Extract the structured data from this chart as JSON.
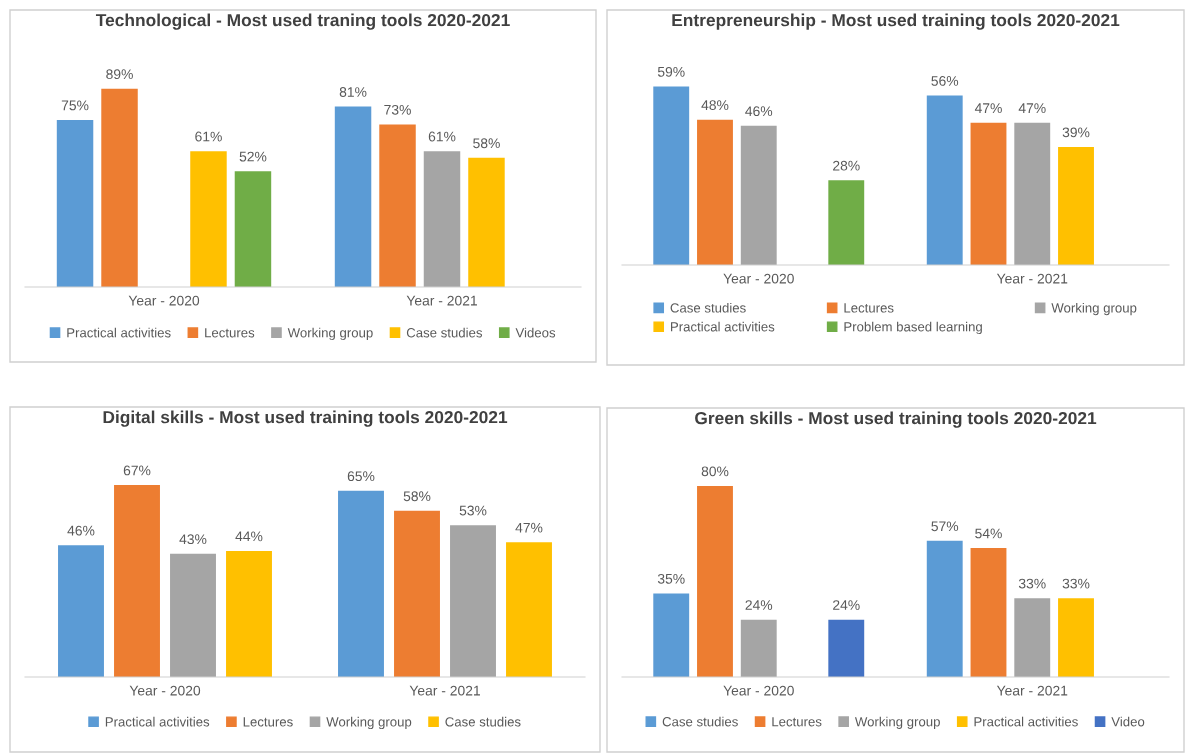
{
  "chart_data": [
    {
      "type": "bar",
      "title": "Technological - Most used traning tools 2020-2021",
      "categories": [
        "Year - 2020",
        "Year - 2021"
      ],
      "legend": "bottom",
      "series": [
        {
          "name": "Practical activities",
          "color": "#5b9bd5",
          "values": [
            75,
            81
          ],
          "value_labels": [
            "75%",
            "81%"
          ]
        },
        {
          "name": "Lectures",
          "color": "#ed7d31",
          "values": [
            89,
            73
          ],
          "value_labels": [
            "89%",
            "73%"
          ]
        },
        {
          "name": "Working group",
          "color": "#a5a5a5",
          "values": [
            null,
            61
          ],
          "value_labels": [
            null,
            "61%"
          ]
        },
        {
          "name": "Case studies",
          "color": "#ffc000",
          "values": [
            61,
            58
          ],
          "value_labels": [
            "61%",
            "58%"
          ]
        },
        {
          "name": "Videos",
          "color": "#70ad47",
          "values": [
            52,
            null
          ],
          "value_labels": [
            "52%",
            null
          ]
        }
      ]
    },
    {
      "type": "bar",
      "title": "Entrepreneurship - Most used training tools 2020-2021",
      "categories": [
        "Year - 2020",
        "Year - 2021"
      ],
      "legend": "bottom",
      "series": [
        {
          "name": "Case studies",
          "color": "#5b9bd5",
          "values": [
            59,
            56
          ],
          "value_labels": [
            "59%",
            "56%"
          ]
        },
        {
          "name": "Lectures",
          "color": "#ed7d31",
          "values": [
            48,
            47
          ],
          "value_labels": [
            "48%",
            "47%"
          ]
        },
        {
          "name": "Working group",
          "color": "#a5a5a5",
          "values": [
            46,
            47
          ],
          "value_labels": [
            "46%",
            "47%"
          ]
        },
        {
          "name": "Practical activities",
          "color": "#ffc000",
          "values": [
            null,
            39
          ],
          "value_labels": [
            null,
            "39%"
          ]
        },
        {
          "name": "Problem based learning",
          "color": "#70ad47",
          "values": [
            28,
            null
          ],
          "value_labels": [
            "28%",
            null
          ]
        }
      ]
    },
    {
      "type": "bar",
      "title": "Digital skills - Most used training tools 2020-2021",
      "categories": [
        "Year - 2020",
        "Year - 2021"
      ],
      "legend": "bottom",
      "series": [
        {
          "name": "Practical activities",
          "color": "#5b9bd5",
          "values": [
            46,
            65
          ],
          "value_labels": [
            "46%",
            "65%"
          ]
        },
        {
          "name": "Lectures",
          "color": "#ed7d31",
          "values": [
            67,
            58
          ],
          "value_labels": [
            "67%",
            "58%"
          ]
        },
        {
          "name": "Working group",
          "color": "#a5a5a5",
          "values": [
            43,
            53
          ],
          "value_labels": [
            "43%",
            "53%"
          ]
        },
        {
          "name": "Case studies",
          "color": "#ffc000",
          "values": [
            44,
            47
          ],
          "value_labels": [
            "44%",
            "47%"
          ]
        }
      ]
    },
    {
      "type": "bar",
      "title": "Green skills - Most used training tools 2020-2021",
      "categories": [
        "Year - 2020",
        "Year - 2021"
      ],
      "legend": "bottom",
      "series": [
        {
          "name": "Case studies",
          "color": "#5b9bd5",
          "values": [
            35,
            57
          ],
          "value_labels": [
            "35%",
            "57%"
          ]
        },
        {
          "name": "Lectures",
          "color": "#ed7d31",
          "values": [
            80,
            54
          ],
          "value_labels": [
            "80%",
            "54%"
          ]
        },
        {
          "name": "Working group",
          "color": "#a5a5a5",
          "values": [
            24,
            33
          ],
          "value_labels": [
            "24%",
            "33%"
          ]
        },
        {
          "name": "Practical activities",
          "color": "#ffc000",
          "values": [
            null,
            33
          ],
          "value_labels": [
            null,
            "33%"
          ]
        },
        {
          "name": "Video",
          "color": "#4472c4",
          "values": [
            24,
            null
          ],
          "value_labels": [
            "24%",
            null
          ]
        }
      ]
    }
  ]
}
